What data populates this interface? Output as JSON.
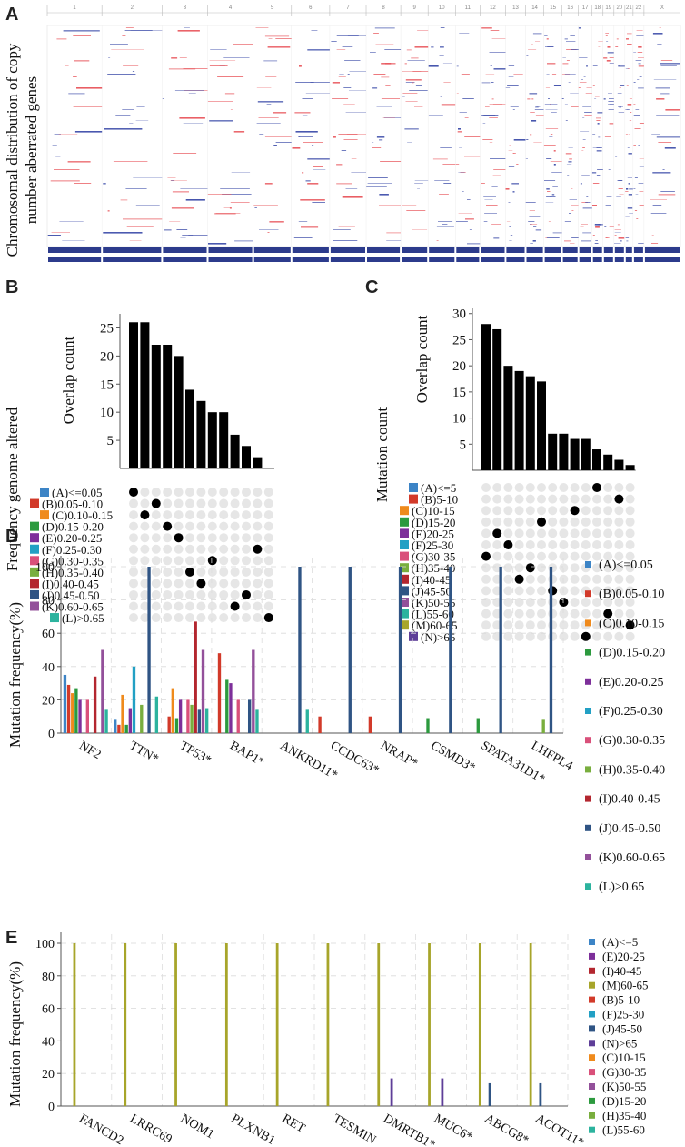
{
  "panel_labels": {
    "a": "A",
    "b": "B",
    "c": "C",
    "d": "D",
    "e": "E"
  },
  "chart_data": [
    {
      "panel": "A",
      "type": "heatmap",
      "ylabel_line1": "Chromosomal distribution of copy",
      "ylabel_line2": "number aberrated genes",
      "chromosomes": [
        "1",
        "2",
        "3",
        "4",
        "5",
        "6",
        "7",
        "8",
        "9",
        "10",
        "11",
        "12",
        "13",
        "14",
        "15",
        "16",
        "17",
        "18",
        "19",
        "20",
        "21",
        "22",
        "X"
      ],
      "legend": {
        "gain_color": "#e8545a",
        "loss_color": "#3a4aa8"
      }
    },
    {
      "panel": "B",
      "type": "bar",
      "ylabel": "Overlap count",
      "yticks": [
        5,
        10,
        15,
        20,
        25
      ],
      "ylim": [
        0,
        27.5
      ],
      "values": [
        26,
        26,
        22,
        22,
        20,
        14,
        12,
        10,
        10,
        6,
        4,
        2
      ],
      "matrix_ylabel": "Frequency genome altered",
      "sets": [
        {
          "label": "(A)<=0.05",
          "color": "#3c84c6"
        },
        {
          "label": "(B)0.05-0.10",
          "color": "#d23a2a"
        },
        {
          "label": "(C)0.10-0.15",
          "color": "#ef8a1c"
        },
        {
          "label": "(D)0.15-0.20",
          "color": "#2c9a3e"
        },
        {
          "label": "(E)0.20-0.25",
          "color": "#7d2f9a"
        },
        {
          "label": "(F)0.25-0.30",
          "color": "#22a0c4"
        },
        {
          "label": "(G)0.30-0.35",
          "color": "#d9507a"
        },
        {
          "label": "(H)0.35-0.40",
          "color": "#79ae3e"
        },
        {
          "label": "(I)0.40-0.45",
          "color": "#b3262f"
        },
        {
          "label": "(J)0.45-0.50",
          "color": "#2f5484"
        },
        {
          "label": "(K)0.60-0.65",
          "color": "#93509a"
        },
        {
          "label": "(L)>0.65",
          "color": "#2cb39e"
        }
      ],
      "dot_rows": [
        0,
        1,
        2,
        3,
        4,
        5,
        6,
        7,
        8,
        9,
        10,
        11,
        12,
        13
      ],
      "dots": [
        [
          0,
          0
        ],
        [
          1,
          2
        ],
        [
          2,
          1
        ],
        [
          3,
          3
        ],
        [
          4,
          4
        ],
        [
          5,
          11
        ],
        [
          6,
          7
        ],
        [
          7,
          5
        ],
        [
          8,
          6
        ],
        [
          9,
          10
        ],
        [
          10,
          9
        ],
        [
          11,
          12
        ]
      ]
    },
    {
      "panel": "C",
      "type": "bar",
      "ylabel": "Overlap count",
      "yticks": [
        5,
        10,
        15,
        20,
        25,
        30
      ],
      "ylim": [
        0,
        31
      ],
      "values": [
        28,
        27,
        20,
        19,
        18,
        17,
        7,
        7,
        6,
        6,
        4,
        3,
        2,
        1
      ],
      "matrix_ylabel": "Mutation count",
      "sets": [
        {
          "label": "(A)<=5",
          "color": "#3c84c6"
        },
        {
          "label": "(B)5-10",
          "color": "#d23a2a"
        },
        {
          "label": "(C)10-15",
          "color": "#ef8a1c"
        },
        {
          "label": "(D)15-20",
          "color": "#2c9a3e"
        },
        {
          "label": "(E)20-25",
          "color": "#7d2f9a"
        },
        {
          "label": "(F)25-30",
          "color": "#22a0c4"
        },
        {
          "label": "(G)30-35",
          "color": "#d9507a"
        },
        {
          "label": "(H)35-40",
          "color": "#79ae3e"
        },
        {
          "label": "(I)40-45",
          "color": "#b3262f"
        },
        {
          "label": "(J)45-50",
          "color": "#2f5484"
        },
        {
          "label": "(K)50-55",
          "color": "#93509a"
        },
        {
          "label": "(L)55-60",
          "color": "#2cb39e"
        },
        {
          "label": "(M)60-65",
          "color": "#a7a52a"
        },
        {
          "label": "(N)>65",
          "color": "#5e3e98"
        }
      ],
      "dots": [
        [
          0,
          10
        ],
        [
          1,
          12
        ],
        [
          2,
          8
        ],
        [
          3,
          5
        ],
        [
          4,
          1
        ],
        [
          5,
          2
        ],
        [
          6,
          0
        ],
        [
          7,
          4
        ],
        [
          8,
          3
        ],
        [
          9,
          6
        ],
        [
          10,
          7
        ],
        [
          11,
          11
        ],
        [
          12,
          13
        ],
        [
          13,
          9
        ]
      ]
    },
    {
      "panel": "D",
      "type": "bar",
      "ylabel": "Mutation frequency(%)",
      "ylim": [
        0,
        100
      ],
      "yticks": [
        0,
        20,
        40,
        60,
        80,
        100
      ],
      "categories": [
        "NF2",
        "TTN*",
        "TP53*",
        "BAP1*",
        "ANKRD11*",
        "CCDC63*",
        "NRAP*",
        "CSMD3*",
        "SPATA31D1*",
        "LHFPL4"
      ],
      "series": [
        {
          "name": "(A)<=0.05",
          "color": "#3c84c6",
          "values": [
            35,
            8,
            0,
            0,
            0,
            0,
            0,
            0,
            0,
            0
          ]
        },
        {
          "name": "(B)0.05-0.10",
          "color": "#d23a2a",
          "values": [
            29,
            5,
            10,
            48,
            0,
            10,
            10,
            0,
            0,
            0
          ]
        },
        {
          "name": "(C)0.10-0.15",
          "color": "#ef8a1c",
          "values": [
            24,
            23,
            27,
            0,
            0,
            0,
            0,
            0,
            0,
            0
          ]
        },
        {
          "name": "(D)0.15-0.20",
          "color": "#2c9a3e",
          "values": [
            27,
            5,
            9,
            32,
            0,
            0,
            0,
            9,
            9,
            0
          ]
        },
        {
          "name": "(E)0.20-0.25",
          "color": "#7d2f9a",
          "values": [
            20,
            15,
            20,
            30,
            0,
            0,
            0,
            0,
            0,
            0
          ]
        },
        {
          "name": "(F)0.25-0.30",
          "color": "#22a0c4",
          "values": [
            0,
            40,
            0,
            0,
            0,
            0,
            0,
            0,
            0,
            0
          ]
        },
        {
          "name": "(G)0.30-0.35",
          "color": "#d9507a",
          "values": [
            20,
            0,
            20,
            20,
            0,
            0,
            0,
            0,
            0,
            0
          ]
        },
        {
          "name": "(H)0.35-0.40",
          "color": "#79ae3e",
          "values": [
            0,
            17,
            17,
            0,
            0,
            0,
            0,
            0,
            0,
            8
          ]
        },
        {
          "name": "(I)0.40-0.45",
          "color": "#b3262f",
          "values": [
            34,
            0,
            67,
            0,
            0,
            0,
            0,
            0,
            0,
            0
          ]
        },
        {
          "name": "(J)0.45-0.50",
          "color": "#2f5484",
          "values": [
            0,
            100,
            14,
            20,
            100,
            100,
            100,
            100,
            100,
            100
          ]
        },
        {
          "name": "(K)0.60-0.65",
          "color": "#93509a",
          "values": [
            50,
            0,
            50,
            50,
            0,
            0,
            0,
            0,
            0,
            0
          ]
        },
        {
          "name": "(L)>0.65",
          "color": "#2cb39e",
          "values": [
            14,
            22,
            15,
            14,
            14,
            0,
            0,
            0,
            0,
            0
          ]
        }
      ]
    },
    {
      "panel": "E",
      "type": "bar",
      "ylabel": "Mutation frequency(%)",
      "ylim": [
        0,
        100
      ],
      "yticks": [
        0,
        20,
        40,
        60,
        80,
        100
      ],
      "categories": [
        "FANCD2",
        "LRRC69",
        "NOM1",
        "PLXNB1",
        "RET",
        "TESMIN",
        "DMRTB1*",
        "MUC6*",
        "ABCG8*",
        "ACOT11*"
      ],
      "series": [
        {
          "name": "(A)<=5",
          "color": "#3c84c6",
          "values": [
            0,
            0,
            0,
            0,
            0,
            0,
            0,
            0,
            0,
            0
          ]
        },
        {
          "name": "(E)20-25",
          "color": "#7d2f9a",
          "values": [
            0,
            0,
            0,
            0,
            0,
            0,
            0,
            0,
            0,
            0
          ]
        },
        {
          "name": "(I)40-45",
          "color": "#b3262f",
          "values": [
            0,
            0,
            0,
            0,
            0,
            0,
            0,
            0,
            0,
            0
          ]
        },
        {
          "name": "(M)60-65",
          "color": "#a7a52a",
          "values": [
            100,
            100,
            100,
            100,
            100,
            100,
            100,
            100,
            100,
            100
          ]
        },
        {
          "name": "(B)5-10",
          "color": "#d23a2a",
          "values": [
            0,
            0,
            0,
            0,
            0,
            0,
            0,
            0,
            0,
            0
          ]
        },
        {
          "name": "(F)25-30",
          "color": "#22a0c4",
          "values": [
            0,
            0,
            0,
            0,
            0,
            0,
            0,
            0,
            0,
            0
          ]
        },
        {
          "name": "(J)45-50",
          "color": "#2f5484",
          "values": [
            0,
            0,
            0,
            0,
            0,
            0,
            0,
            0,
            14,
            14
          ]
        },
        {
          "name": "(N)>65",
          "color": "#5e3e98",
          "values": [
            0,
            0,
            0,
            0,
            0,
            0,
            17,
            17,
            0,
            0
          ]
        },
        {
          "name": "(C)10-15",
          "color": "#ef8a1c",
          "values": [
            0,
            0,
            0,
            0,
            0,
            0,
            0,
            0,
            0,
            0
          ]
        },
        {
          "name": "(G)30-35",
          "color": "#d9507a",
          "values": [
            0,
            0,
            0,
            0,
            0,
            0,
            0,
            0,
            0,
            0
          ]
        },
        {
          "name": "(K)50-55",
          "color": "#93509a",
          "values": [
            0,
            0,
            0,
            0,
            0,
            0,
            0,
            0,
            0,
            0
          ]
        },
        {
          "name": "(D)15-20",
          "color": "#2c9a3e",
          "values": [
            0,
            0,
            0,
            0,
            0,
            0,
            0,
            0,
            0,
            0
          ]
        },
        {
          "name": "(H)35-40",
          "color": "#79ae3e",
          "values": [
            0,
            0,
            0,
            0,
            0,
            0,
            0,
            0,
            0,
            0
          ]
        },
        {
          "name": "(L)55-60",
          "color": "#2cb39e",
          "values": [
            0,
            0,
            0,
            0,
            0,
            0,
            0,
            0,
            0,
            0
          ]
        }
      ]
    }
  ]
}
